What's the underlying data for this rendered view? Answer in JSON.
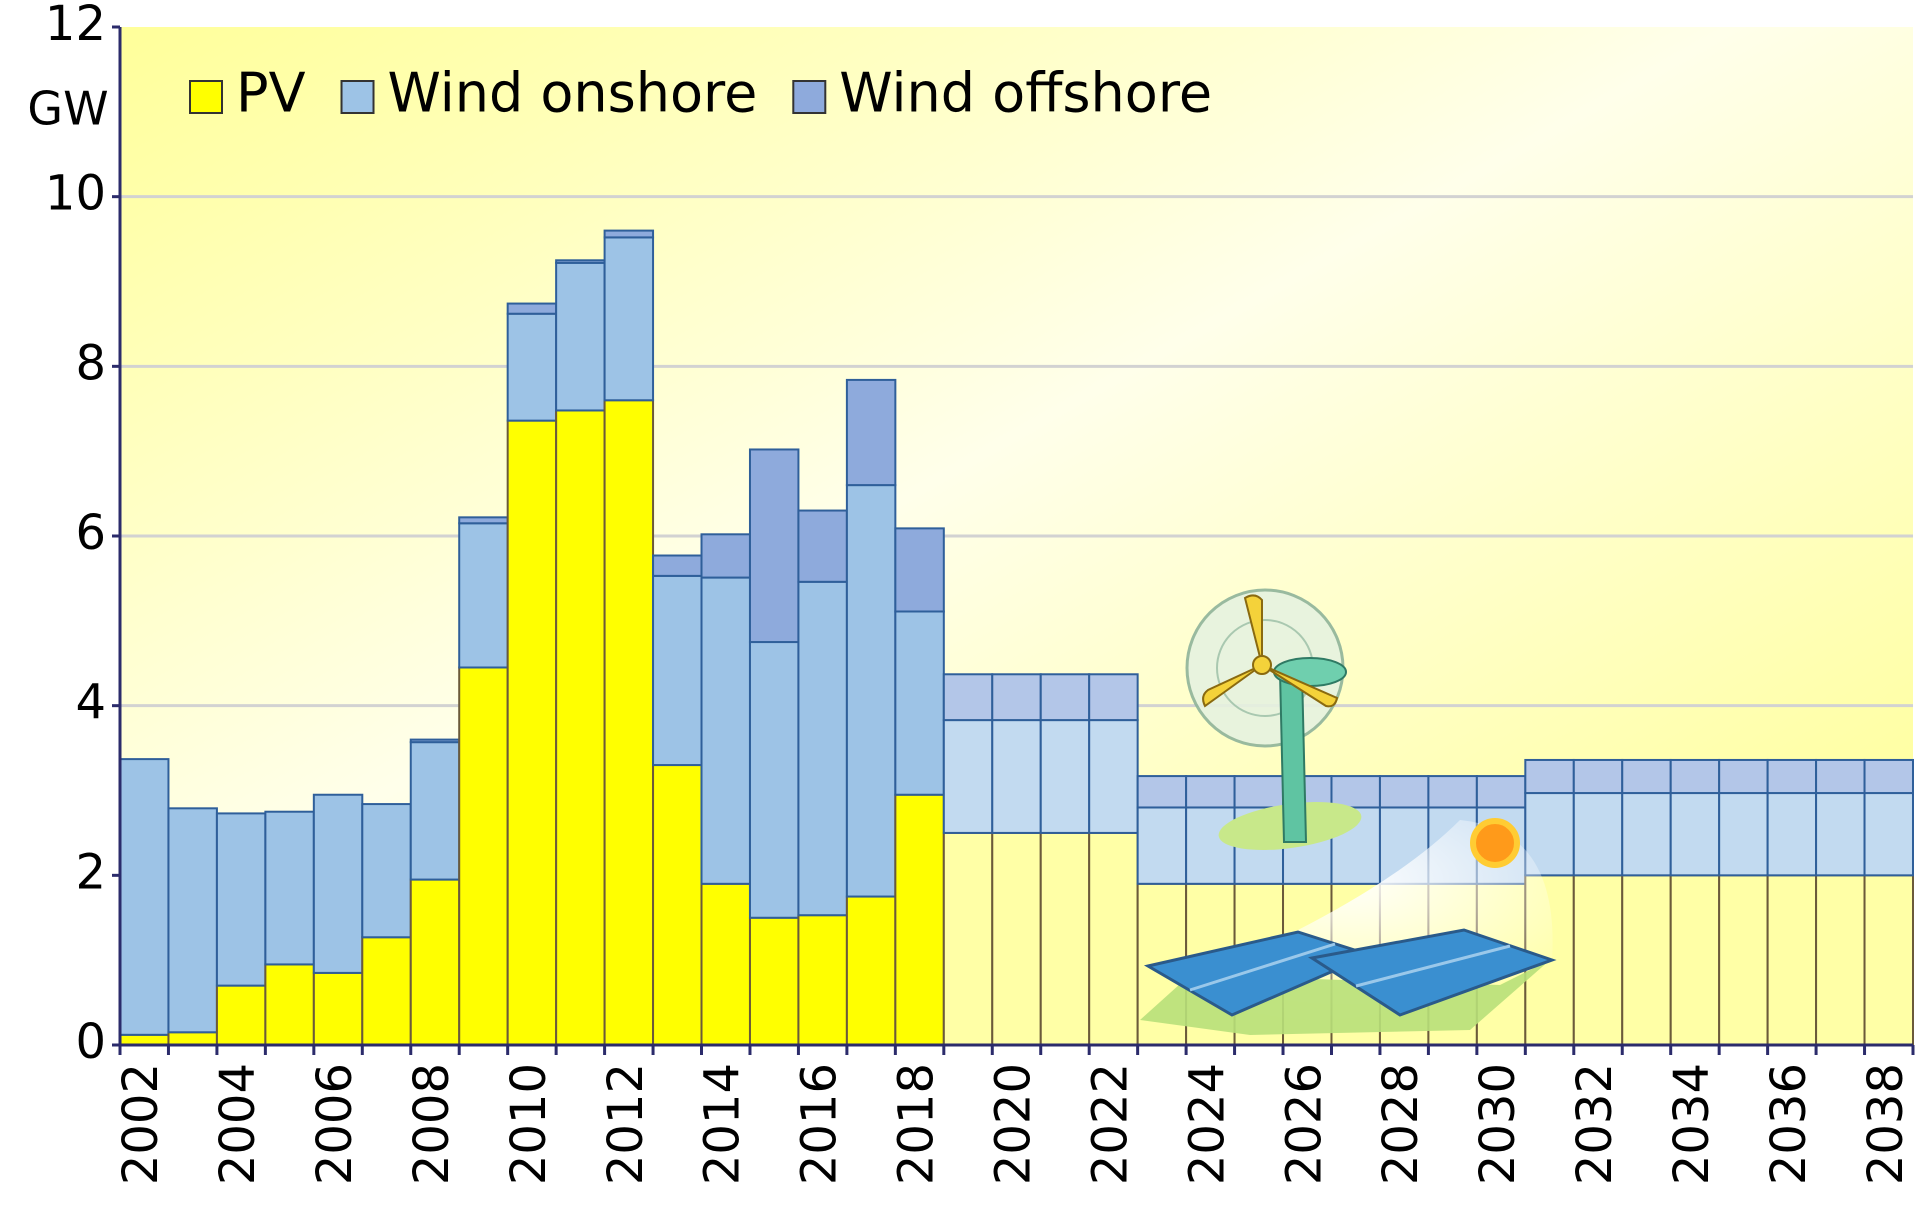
{
  "chart_data": {
    "type": "stacked_bar",
    "y_label": "GW",
    "categories": [
      "2002",
      null,
      "2004",
      null,
      "2006",
      null,
      "2008",
      null,
      "2010",
      null,
      "2012",
      null,
      "2014",
      null,
      "2016",
      null,
      "2018",
      null,
      "2020",
      null,
      "2022",
      null,
      "2024",
      null,
      "2026",
      null,
      "2028",
      null,
      "2030",
      null,
      "2032",
      null,
      "2034",
      null,
      "2036",
      null,
      "2038"
    ],
    "series": [
      {
        "name": "PV",
        "color": "#ffff00",
        "projected_color": "#ffffa6",
        "values": [
          0.12,
          0.15,
          0.7,
          0.95,
          0.85,
          1.27,
          1.95,
          4.45,
          7.36,
          7.48,
          7.6,
          3.3,
          1.9,
          1.5,
          1.53,
          1.75,
          2.95,
          2.5,
          2.5,
          2.5,
          2.5,
          1.9,
          1.9,
          1.9,
          1.9,
          1.9,
          1.9,
          1.9,
          1.9,
          2.0,
          2.0,
          2.0,
          2.0,
          2.0,
          2.0,
          2.0,
          2.0
        ]
      },
      {
        "name": "Wind onshore",
        "color": "#9dc3e6",
        "projected_color": "#c2daf0",
        "values": [
          3.25,
          2.64,
          2.03,
          1.8,
          2.1,
          1.57,
          1.62,
          1.7,
          1.26,
          1.74,
          1.92,
          2.23,
          3.61,
          3.25,
          3.93,
          4.85,
          2.16,
          1.33,
          1.33,
          1.33,
          1.33,
          0.9,
          0.9,
          0.9,
          0.9,
          0.9,
          0.9,
          0.9,
          0.9,
          0.97,
          0.97,
          0.97,
          0.97,
          0.97,
          0.97,
          0.97,
          0.97
        ]
      },
      {
        "name": "Wind offshore",
        "color": "#8eaadc",
        "projected_color": "#b3c6e8",
        "values": [
          0,
          0,
          0,
          0,
          0,
          0,
          0.03,
          0.07,
          0.12,
          0.03,
          0.08,
          0.24,
          0.51,
          2.27,
          0.84,
          1.24,
          0.98,
          0.54,
          0.54,
          0.54,
          0.54,
          0.37,
          0.37,
          0.37,
          0.37,
          0.37,
          0.37,
          0.37,
          0.37,
          0.39,
          0.39,
          0.39,
          0.39,
          0.39,
          0.39,
          0.39,
          0.39
        ]
      }
    ],
    "projected_from_index": 17,
    "ylim": [
      0,
      12
    ],
    "yticks": [
      0,
      2,
      4,
      6,
      8,
      10,
      12
    ],
    "grid": true,
    "legend": "top-left"
  }
}
